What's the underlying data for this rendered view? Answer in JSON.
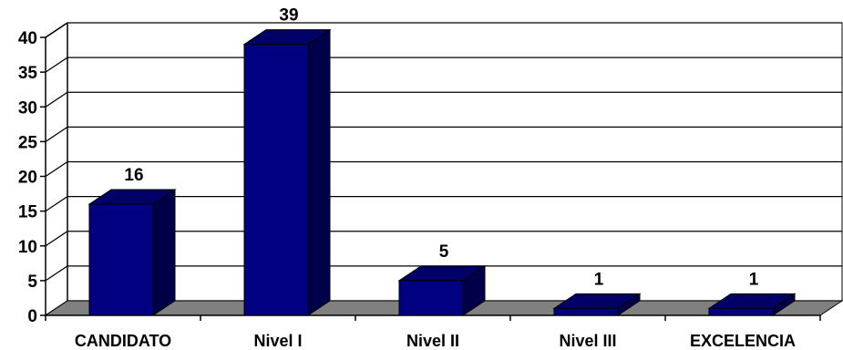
{
  "chart_data": {
    "type": "bar",
    "style": "3d-column",
    "title": "",
    "xlabel": "",
    "ylabel": "",
    "categories": [
      "CANDIDATO",
      "Nivel I",
      "Nivel II",
      "Nivel III",
      "EXCELENCIA"
    ],
    "values": [
      16,
      39,
      5,
      1,
      1
    ],
    "data_labels": [
      "16",
      "39",
      "5",
      "1",
      "1"
    ],
    "ylim": [
      0,
      40
    ],
    "yticks": [
      0,
      5,
      10,
      15,
      20,
      25,
      30,
      35,
      40
    ],
    "ytick_labels": [
      "0",
      "5",
      "10",
      "15",
      "20",
      "25",
      "30",
      "35",
      "40"
    ],
    "grid": true,
    "legend": "none",
    "colors": {
      "bar_front": "#000080",
      "bar_top": "#000066",
      "bar_side": "#00004a",
      "floor": "#808080",
      "wall": "#ffffff",
      "grid": "#000000"
    }
  }
}
